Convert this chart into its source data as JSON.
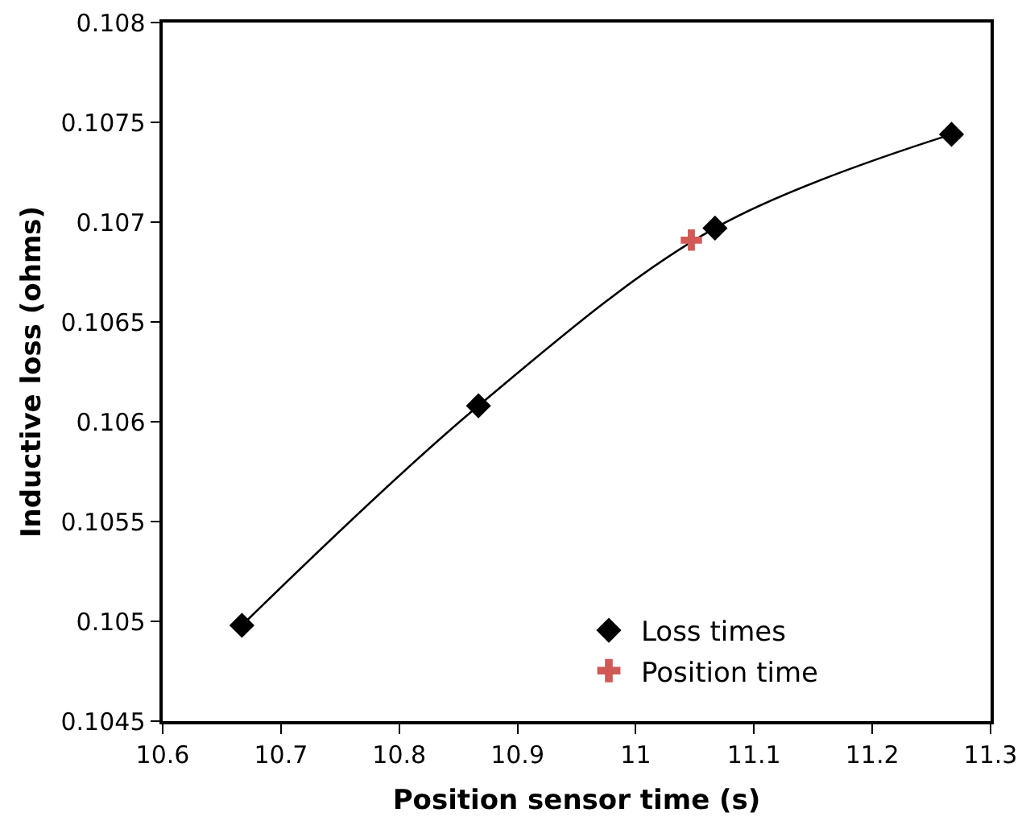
{
  "chart_data": {
    "type": "scatter",
    "xlabel": "Position sensor time (s)",
    "ylabel": "Inductive loss (ohms)",
    "xlim": [
      10.6,
      11.3
    ],
    "xticks": [
      10.6,
      10.7,
      10.8,
      10.9,
      11,
      11.1,
      11.2,
      11.3
    ],
    "ylim": [
      0.1045,
      0.108
    ],
    "yticks": [
      0.1045,
      0.105,
      0.1055,
      0.106,
      0.1065,
      0.107,
      0.1075,
      0.108
    ],
    "grid": false,
    "legend": "bottom right",
    "series": [
      {
        "type": "line",
        "color": "#000000",
        "marker": "none",
        "line_style": "solid",
        "x": [
          10.667,
          10.867,
          11.067,
          11.267
        ],
        "values": [
          0.10498,
          0.10608,
          0.10697,
          0.10744
        ]
      },
      {
        "type": "scatter",
        "name": "Loss times",
        "color": "#000000",
        "marker": "diamond",
        "x": [
          10.667,
          10.867,
          11.067,
          11.267
        ],
        "values": [
          0.10498,
          0.10608,
          0.10697,
          0.10744
        ]
      },
      {
        "type": "scatter",
        "name": "Position time",
        "color": "#d05a56",
        "marker": "cross",
        "x": [
          11.047
        ],
        "values": [
          0.10691
        ]
      }
    ]
  }
}
